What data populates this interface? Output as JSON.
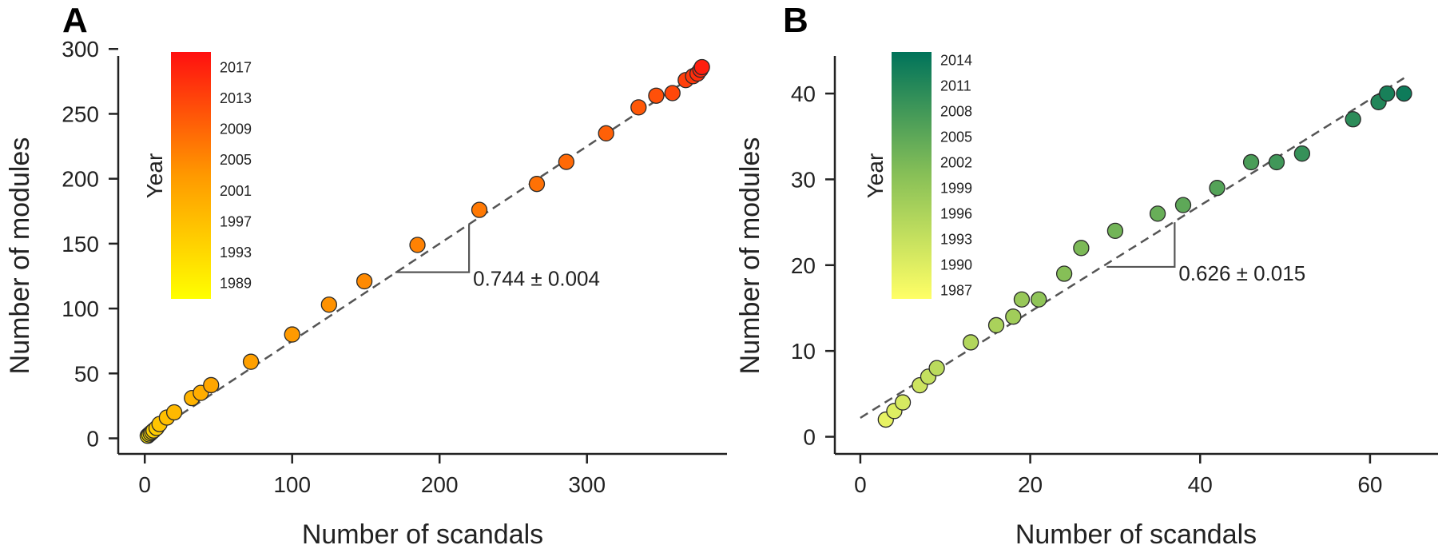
{
  "chart_data": [
    {
      "panel": "A",
      "type": "scatter",
      "xlabel": "Number of scandals",
      "ylabel": "Number of modules",
      "xlim": [
        -18,
        395
      ],
      "ylim": [
        -12,
        302
      ],
      "xticks": [
        0,
        100,
        200,
        300
      ],
      "yticks": [
        0,
        50,
        100,
        150,
        200,
        250,
        300
      ],
      "colorbar": {
        "title": "Year",
        "range": [
          1987,
          2019
        ],
        "ticks": [
          1989,
          1993,
          1997,
          2001,
          2005,
          2009,
          2013,
          2017
        ],
        "color_low": "#ffff00",
        "color_mid": "#ff9900",
        "color_high": "#ff1010"
      },
      "fit": {
        "x": [
          0,
          380
        ],
        "y": [
          0,
          285
        ],
        "slope_label": "0.744 ± 0.004"
      },
      "slope_triangle": {
        "x_start": 170,
        "x_end": 220,
        "y_low": 128,
        "y_high": 165
      },
      "points": [
        {
          "x": 2,
          "y": 2
        },
        {
          "x": 3,
          "y": 3
        },
        {
          "x": 4,
          "y": 4
        },
        {
          "x": 5,
          "y": 5
        },
        {
          "x": 6,
          "y": 6
        },
        {
          "x": 8,
          "y": 8
        },
        {
          "x": 10,
          "y": 11
        },
        {
          "x": 15,
          "y": 16
        },
        {
          "x": 20,
          "y": 20
        },
        {
          "x": 32,
          "y": 31
        },
        {
          "x": 38,
          "y": 35
        },
        {
          "x": 45,
          "y": 41
        },
        {
          "x": 72,
          "y": 59
        },
        {
          "x": 100,
          "y": 80
        },
        {
          "x": 125,
          "y": 103
        },
        {
          "x": 149,
          "y": 121
        },
        {
          "x": 185,
          "y": 149
        },
        {
          "x": 227,
          "y": 176
        },
        {
          "x": 266,
          "y": 196
        },
        {
          "x": 286,
          "y": 213
        },
        {
          "x": 313,
          "y": 235
        },
        {
          "x": 335,
          "y": 255
        },
        {
          "x": 347,
          "y": 264
        },
        {
          "x": 358,
          "y": 266
        },
        {
          "x": 367,
          "y": 276
        },
        {
          "x": 372,
          "y": 279
        },
        {
          "x": 375,
          "y": 281
        },
        {
          "x": 377,
          "y": 284
        },
        {
          "x": 378,
          "y": 286
        }
      ]
    },
    {
      "panel": "B",
      "type": "scatter",
      "xlabel": "Number of scandals",
      "ylabel": "Number of modules",
      "xlim": [
        -3,
        68
      ],
      "ylim": [
        -2,
        45.5
      ],
      "xticks": [
        0,
        20,
        40,
        60
      ],
      "yticks": [
        0,
        10,
        20,
        30,
        40
      ],
      "colorbar": {
        "title": "Year",
        "range": [
          1986,
          2015
        ],
        "ticks": [
          1987,
          1990,
          1993,
          1996,
          1999,
          2002,
          2005,
          2008,
          2011,
          2014
        ],
        "color_low": "#ffff66",
        "color_mid": "#88c057",
        "color_high": "#00735a"
      },
      "fit": {
        "x": [
          0,
          64
        ],
        "y": [
          2.2,
          41.8
        ],
        "slope_label": "0.626 ± 0.015"
      },
      "slope_triangle": {
        "x_start": 29,
        "x_end": 37,
        "y_low": 19.8,
        "y_high": 25
      },
      "points": [
        {
          "x": 3,
          "y": 2
        },
        {
          "x": 4,
          "y": 3
        },
        {
          "x": 5,
          "y": 4
        },
        {
          "x": 7,
          "y": 6
        },
        {
          "x": 8,
          "y": 7
        },
        {
          "x": 9,
          "y": 8
        },
        {
          "x": 13,
          "y": 11
        },
        {
          "x": 16,
          "y": 13
        },
        {
          "x": 18,
          "y": 14
        },
        {
          "x": 19,
          "y": 16
        },
        {
          "x": 21,
          "y": 16
        },
        {
          "x": 24,
          "y": 19
        },
        {
          "x": 26,
          "y": 22
        },
        {
          "x": 30,
          "y": 24
        },
        {
          "x": 35,
          "y": 26
        },
        {
          "x": 38,
          "y": 27
        },
        {
          "x": 42,
          "y": 29
        },
        {
          "x": 46,
          "y": 32
        },
        {
          "x": 49,
          "y": 32
        },
        {
          "x": 52,
          "y": 33
        },
        {
          "x": 58,
          "y": 37
        },
        {
          "x": 61,
          "y": 39
        },
        {
          "x": 62,
          "y": 40
        },
        {
          "x": 64,
          "y": 40
        }
      ]
    }
  ]
}
